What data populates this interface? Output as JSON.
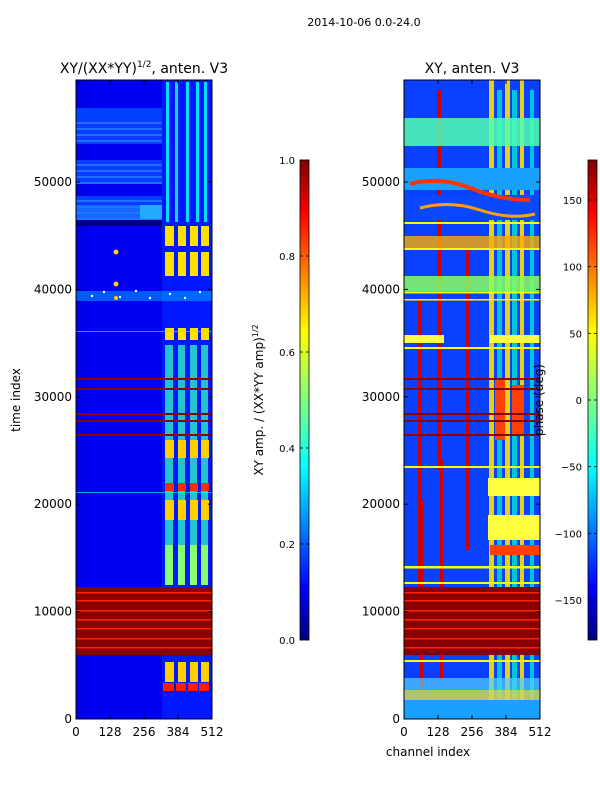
{
  "figure": {
    "suptitle": "2014-10-06 0.0-24.0",
    "xlabel": "channel index",
    "ylabel": "time index"
  },
  "colormap_stops": [
    "#00007f",
    "#0000ff",
    "#007fff",
    "#00ffff",
    "#7fff7f",
    "#ffff00",
    "#ff7f00",
    "#ff0000",
    "#7f0000"
  ],
  "chart_data": [
    {
      "type": "heatmap",
      "title_main": "XY/(XX*YY)",
      "title_sup": "1/2",
      "title_tail": ", anten. V3",
      "xlabel": "",
      "ylabel": "time index",
      "xlim": [
        0,
        512
      ],
      "ylim": [
        0,
        59500
      ],
      "xticks": [
        0,
        128,
        256,
        384,
        512
      ],
      "yticks": [
        0,
        10000,
        20000,
        30000,
        40000,
        50000
      ],
      "colorbar": {
        "label_main": "XY amp. / (XX*YY amp)",
        "label_sup": "1/2",
        "range": [
          0.0,
          1.0
        ],
        "ticks": [
          "0.0",
          "0.2",
          "0.4",
          "0.6",
          "0.8",
          "1.0"
        ]
      }
    },
    {
      "type": "heatmap",
      "title_main": "XY, anten. V3",
      "xlabel": "channel index",
      "ylabel": "",
      "xlim": [
        0,
        512
      ],
      "ylim": [
        0,
        59500
      ],
      "xticks": [
        0,
        128,
        256,
        384,
        512
      ],
      "yticks": [
        0,
        10000,
        20000,
        30000,
        40000,
        50000
      ],
      "colorbar": {
        "label_main": "phase (deg)",
        "range": [
          -180,
          180
        ],
        "ticks": [
          "-150",
          "-100",
          "-50",
          "0",
          "50",
          "100",
          "150"
        ]
      }
    }
  ]
}
